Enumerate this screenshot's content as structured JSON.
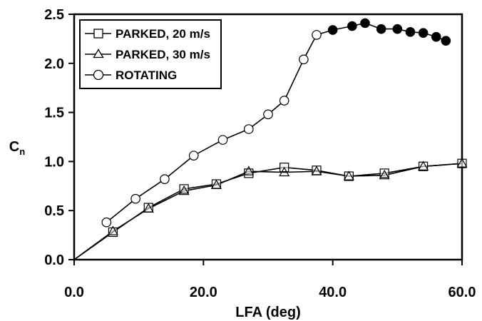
{
  "chart_data": {
    "type": "line",
    "title": "",
    "xlabel": "LFA (deg)",
    "ylabel": "C",
    "ylabel_subscript": "n",
    "xlim": [
      0,
      60
    ],
    "ylim": [
      0,
      2.5
    ],
    "xticks": [
      "0.0",
      "20.0",
      "40.0",
      "60.0"
    ],
    "yticks": [
      "0.0",
      "0.5",
      "1.0",
      "1.5",
      "2.0",
      "2.5"
    ],
    "grid": false,
    "legend_position": "top-left",
    "series": [
      {
        "name": "PARKED, 20 m/s",
        "marker": "square",
        "x": [
          0,
          6,
          11.5,
          17,
          22,
          27,
          32.5,
          37.5,
          42.5,
          48,
          54,
          60
        ],
        "y": [
          0,
          0.28,
          0.53,
          0.72,
          0.77,
          0.88,
          0.94,
          0.91,
          0.85,
          0.88,
          0.95,
          0.98
        ]
      },
      {
        "name": "PARKED, 30 m/s",
        "marker": "triangle",
        "x": [
          0,
          6,
          11.5,
          17,
          22,
          27,
          32.5,
          37.5,
          42.5,
          48,
          54,
          60
        ],
        "y": [
          0,
          0.29,
          0.52,
          0.7,
          0.76,
          0.9,
          0.89,
          0.9,
          0.85,
          0.86,
          0.95,
          0.98
        ]
      },
      {
        "name": "ROTATING",
        "marker": "circle",
        "x": [
          5,
          9.5,
          14,
          18.5,
          23,
          27,
          30,
          32.5,
          35.5,
          37.5,
          40,
          43,
          45,
          47.5,
          50,
          52,
          54,
          56,
          57.5
        ],
        "y": [
          0.38,
          0.62,
          0.82,
          1.06,
          1.22,
          1.33,
          1.48,
          1.62,
          2.04,
          2.29,
          2.34,
          2.38,
          2.41,
          2.35,
          2.35,
          2.32,
          2.31,
          2.27,
          2.23
        ],
        "filled": [
          false,
          false,
          false,
          false,
          false,
          false,
          false,
          false,
          false,
          false,
          true,
          true,
          true,
          true,
          true,
          true,
          true,
          true,
          true
        ]
      }
    ]
  }
}
